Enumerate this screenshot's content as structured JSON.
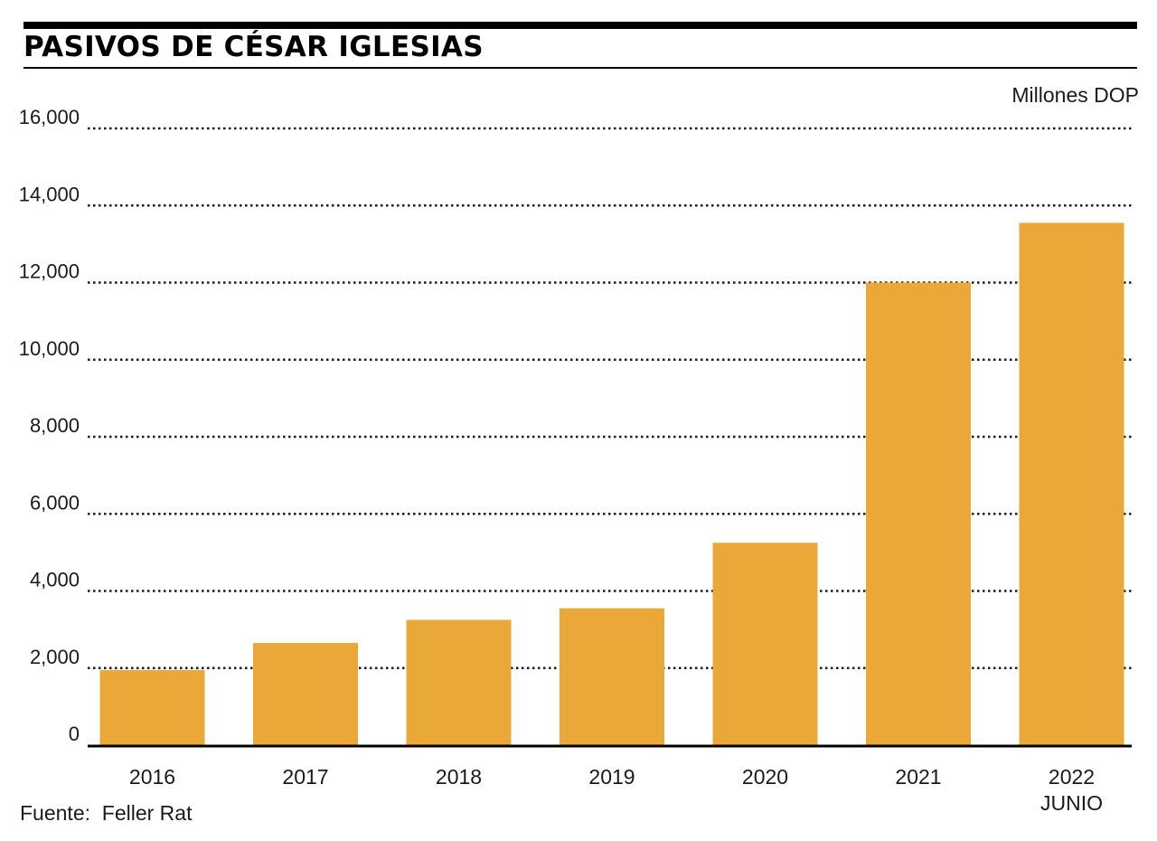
{
  "title": "PASIVOS DE CÉSAR IGLESIAS",
  "unit_label": "Millones DOP",
  "source": "Fuente:  Feller Rat",
  "colors": {
    "bar": "#E9A837",
    "grid": "#1a1a1a",
    "axis": "#000000"
  },
  "chart_data": {
    "type": "bar",
    "title": "PASIVOS DE CÉSAR IGLESIAS",
    "ylabel": "Millones DOP",
    "xlabel": "",
    "categories": [
      "2016",
      "2017",
      "2018",
      "2019",
      "2020",
      "2021",
      "2022"
    ],
    "category_sublabels": [
      "",
      "",
      "",
      "",
      "",
      "",
      "JUNIO"
    ],
    "values": [
      1950,
      2650,
      3250,
      3550,
      5250,
      12000,
      13550
    ],
    "ylim": [
      0,
      16000
    ],
    "yticks": [
      0,
      2000,
      4000,
      6000,
      8000,
      10000,
      12000,
      14000,
      16000
    ],
    "ytick_labels": [
      "0",
      "2,000",
      "4,000",
      "6,000",
      "8,000",
      "10,000",
      "12,000",
      "14,000",
      "16,000"
    ],
    "grid": true,
    "legend": "none"
  }
}
